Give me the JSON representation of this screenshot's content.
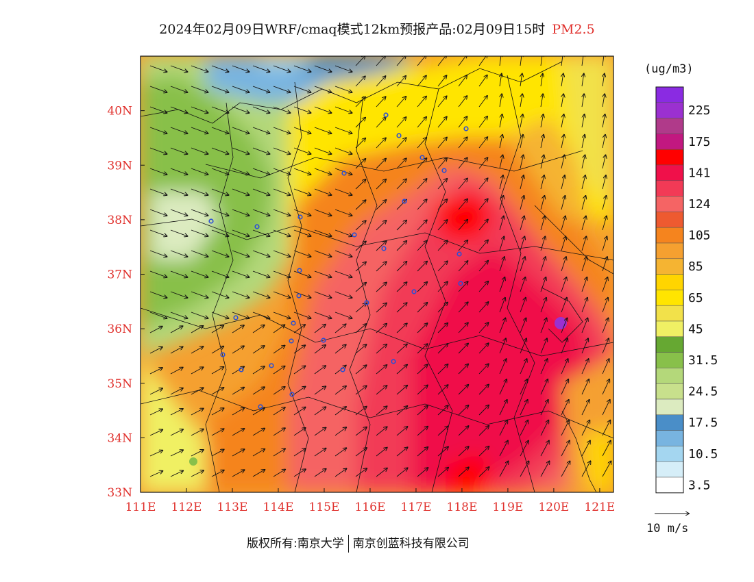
{
  "title": {
    "main": "2024年02月09日WRF/cmaq模式12km预报产品:02月09日15时",
    "pollutant": "PM2.5",
    "pollutant_color": "#e0302c"
  },
  "map": {
    "lon_ticks": [
      "111E",
      "112E",
      "113E",
      "114E",
      "115E",
      "116E",
      "117E",
      "118E",
      "119E",
      "120E",
      "121E"
    ],
    "lat_ticks": [
      "33N",
      "34N",
      "35N",
      "36N",
      "37N",
      "38N",
      "39N",
      "40N"
    ],
    "lon_range": [
      111,
      121.3
    ],
    "lat_range": [
      33,
      41
    ],
    "tick_color": "#e0302c"
  },
  "legend": {
    "unit": "(ug/m3)",
    "bins": [
      {
        "label": "",
        "color": "#8a2be2"
      },
      {
        "label": "225",
        "color": "#9b30d0"
      },
      {
        "label": "",
        "color": "#b03a8a"
      },
      {
        "label": "175",
        "color": "#c21880"
      },
      {
        "label": "",
        "color": "#ff0000"
      },
      {
        "label": "141",
        "color": "#f0104a"
      },
      {
        "label": "",
        "color": "#f23a56"
      },
      {
        "label": "124",
        "color": "#f56464"
      },
      {
        "label": "",
        "color": "#ee5a30"
      },
      {
        "label": "105",
        "color": "#f5841e"
      },
      {
        "label": "",
        "color": "#f5a030"
      },
      {
        "label": "85",
        "color": "#f5b432"
      },
      {
        "label": "",
        "color": "#ffd500"
      },
      {
        "label": "65",
        "color": "#ffe500"
      },
      {
        "label": "",
        "color": "#f2e14a"
      },
      {
        "label": "45",
        "color": "#f0f064"
      },
      {
        "label": "",
        "color": "#66a832"
      },
      {
        "label": "31.5",
        "color": "#88c04a"
      },
      {
        "label": "",
        "color": "#b4d87a"
      },
      {
        "label": "24.5",
        "color": "#c8e08c"
      },
      {
        "label": "",
        "color": "#dcebc0"
      },
      {
        "label": "17.5",
        "color": "#4a8ec8"
      },
      {
        "label": "",
        "color": "#78b4e0"
      },
      {
        "label": "10.5",
        "color": "#a4d6f0"
      },
      {
        "label": "",
        "color": "#d6eef8"
      },
      {
        "label": "3.5",
        "color": "#ffffff"
      }
    ]
  },
  "wind_reference": {
    "label": "10 m/s"
  },
  "footer": {
    "copyright": "版权所有:南京大学",
    "company": "南京创蓝科技有限公司"
  }
}
